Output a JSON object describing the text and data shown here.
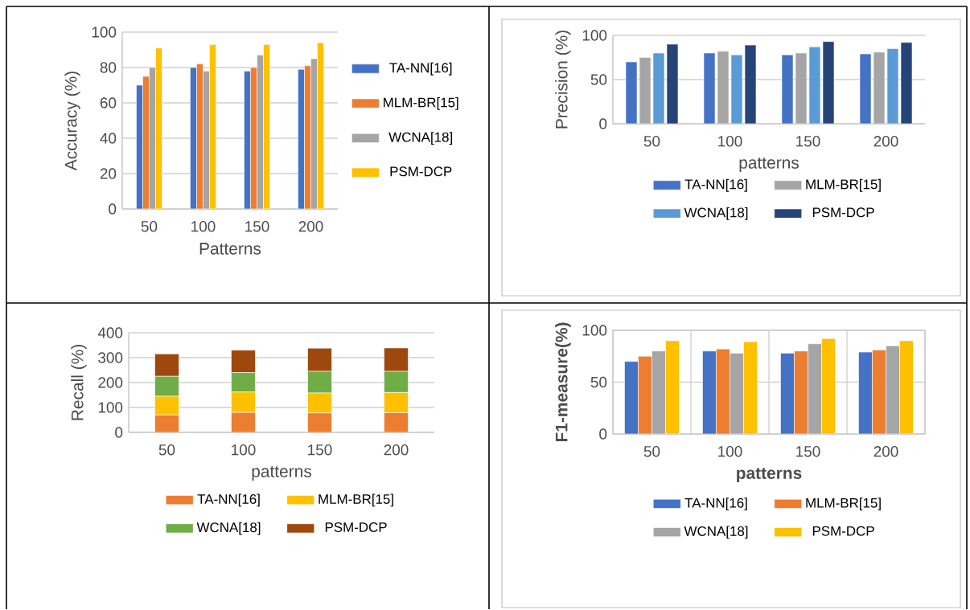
{
  "chart_data": [
    {
      "type": "bar",
      "xlabel": "Patterns",
      "ylabel": "Accuracy (%)",
      "categories": [
        "50",
        "100",
        "150",
        "200"
      ],
      "ylim": [
        0,
        100
      ],
      "yticks": [
        0,
        20,
        40,
        60,
        80,
        100
      ],
      "grid": "y",
      "legend": "right",
      "series": [
        {
          "name": "TA-NN[16]",
          "color": "#4472c4",
          "values": [
            70,
            80,
            78,
            79
          ]
        },
        {
          "name": "MLM-BR[15]",
          "color": "#ed7d31",
          "values": [
            75,
            82,
            80,
            81
          ]
        },
        {
          "name": "WCNA[18]",
          "color": "#a5a5a5",
          "values": [
            80,
            78,
            87,
            85
          ]
        },
        {
          "name": "PSM-DCP",
          "color": "#ffc000",
          "values": [
            91,
            93,
            93,
            94
          ]
        }
      ]
    },
    {
      "type": "bar",
      "xlabel": "patterns",
      "ylabel": "Precision (%)",
      "categories": [
        "50",
        "100",
        "150",
        "200"
      ],
      "ylim": [
        0,
        100
      ],
      "yticks": [
        0,
        50,
        100
      ],
      "grid": "y",
      "legend": "bottom",
      "series": [
        {
          "name": "TA-NN[16]",
          "color": "#4472c4",
          "values": [
            70,
            80,
            78,
            79
          ]
        },
        {
          "name": "MLM-BR[15]",
          "color": "#a5a5a5",
          "values": [
            75,
            82,
            80,
            81
          ]
        },
        {
          "name": "WCNA[18]",
          "color": "#5b9bd5",
          "values": [
            80,
            78,
            87,
            85
          ]
        },
        {
          "name": "PSM-DCP",
          "color": "#264478",
          "values": [
            90,
            89,
            93,
            92
          ]
        }
      ]
    },
    {
      "type": "bar",
      "stacked": true,
      "xlabel": "patterns",
      "ylabel": "Recall (%)",
      "categories": [
        "50",
        "100",
        "150",
        "200"
      ],
      "ylim": [
        0,
        400
      ],
      "yticks": [
        0,
        100,
        200,
        300,
        400
      ],
      "grid": "y",
      "legend": "bottom",
      "series": [
        {
          "name": "TA-NN[16]",
          "color": "#ed7d31",
          "values": [
            70,
            80,
            78,
            79
          ]
        },
        {
          "name": "MLM-BR[15]",
          "color": "#ffc000",
          "values": [
            75,
            82,
            80,
            81
          ]
        },
        {
          "name": "WCNA[18]",
          "color": "#70ad47",
          "values": [
            80,
            78,
            87,
            85
          ]
        },
        {
          "name": "PSM-DCP",
          "color": "#9e480e",
          "values": [
            90,
            90,
            93,
            94
          ]
        }
      ]
    },
    {
      "type": "bar",
      "xlabel": "patterns",
      "ylabel": "F1-measure(%)",
      "categories": [
        "50",
        "100",
        "150",
        "200"
      ],
      "ylim": [
        0,
        100
      ],
      "yticks": [
        0,
        50,
        100
      ],
      "grid": true,
      "legend": "bottom",
      "series": [
        {
          "name": "TA-NN[16]",
          "color": "#4472c4",
          "values": [
            70,
            80,
            78,
            79
          ]
        },
        {
          "name": "MLM-BR[15]",
          "color": "#ed7d31",
          "values": [
            75,
            82,
            80,
            81
          ]
        },
        {
          "name": "WCNA[18]",
          "color": "#a5a5a5",
          "values": [
            80,
            78,
            87,
            85
          ]
        },
        {
          "name": "PSM-DCP",
          "color": "#ffc000",
          "values": [
            90,
            89,
            92,
            90
          ]
        }
      ]
    }
  ]
}
